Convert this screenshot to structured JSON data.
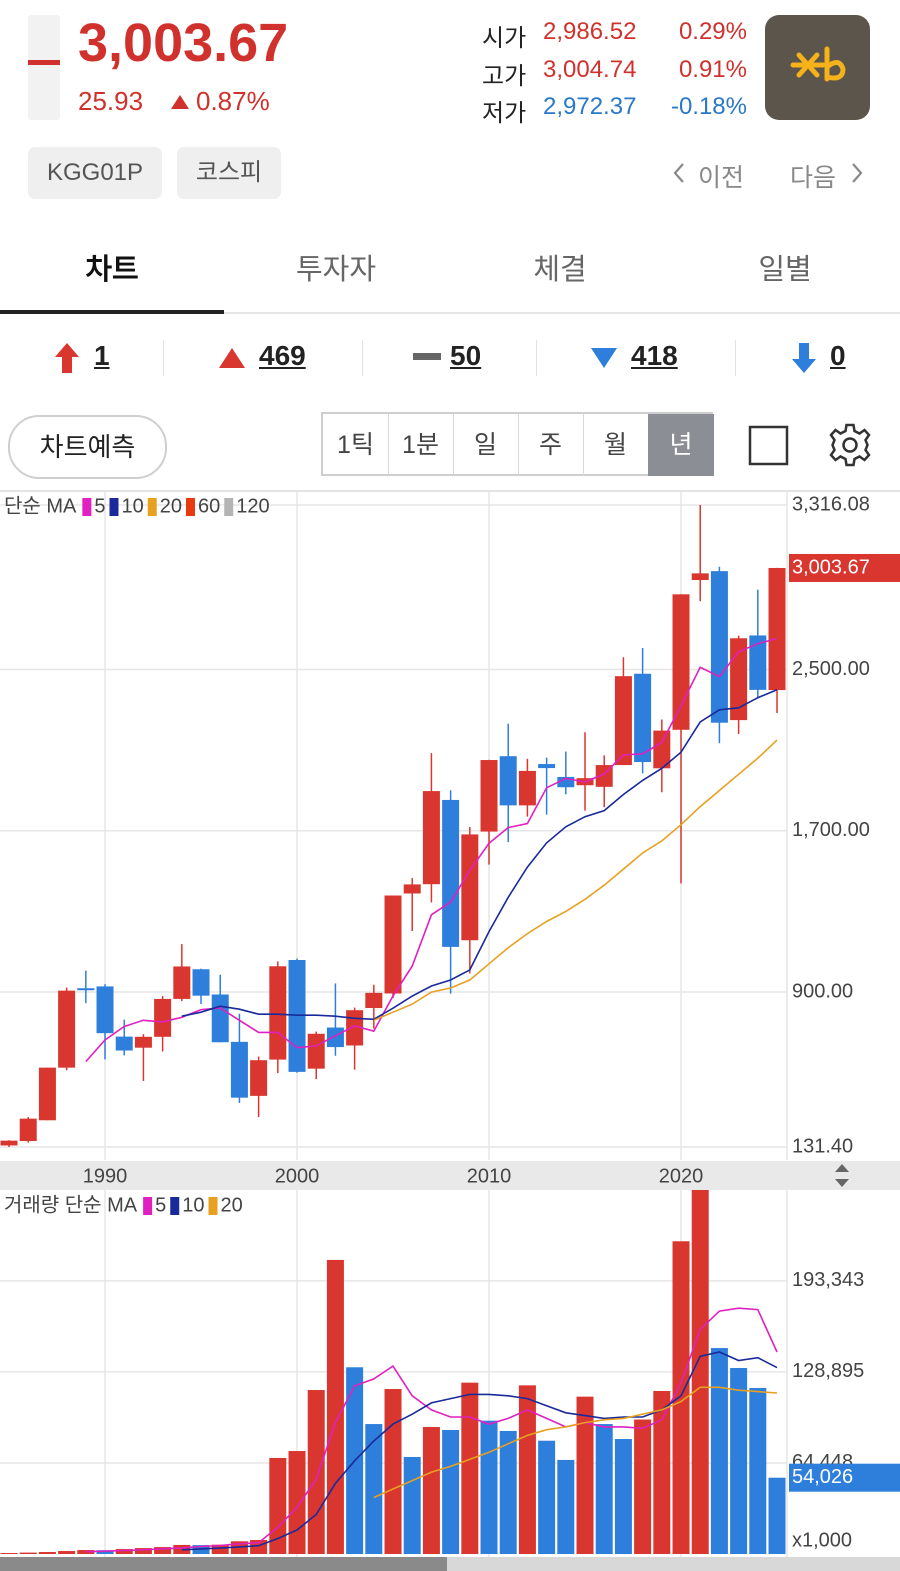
{
  "header": {
    "price": "3,003.67",
    "change": "25.93",
    "change_pct": "0.87%",
    "color": "#d0312d",
    "quotes": [
      {
        "label": "시가",
        "value": "2,986.52",
        "pct": "0.29%",
        "color": "#d0312d"
      },
      {
        "label": "고가",
        "value": "3,004.74",
        "pct": "0.91%",
        "color": "#d0312d"
      },
      {
        "label": "저가",
        "value": "2,972.37",
        "pct": "-0.18%",
        "color": "#2a78c8"
      }
    ],
    "tags": [
      "KGG01P",
      "코스피"
    ],
    "prev": "이전",
    "next": "다음"
  },
  "tabs": [
    "차트",
    "투자자",
    "체결",
    "일별"
  ],
  "counts": [
    1,
    469,
    50,
    418,
    0
  ],
  "toolbar": {
    "predict": "차트예측",
    "periods": [
      "1틱",
      "1분",
      "일",
      "주",
      "월",
      "년"
    ]
  },
  "chart_data": [
    {
      "type": "candlestick",
      "legend_label": "단순 MA",
      "up_color": "#d9362f",
      "down_color": "#2e7fdc",
      "x": [
        1985,
        1986,
        1987,
        1988,
        1989,
        1990,
        1991,
        1992,
        1993,
        1994,
        1995,
        1996,
        1997,
        1998,
        1999,
        2000,
        2001,
        2002,
        2003,
        2004,
        2005,
        2006,
        2007,
        2008,
        2009,
        2010,
        2011,
        2012,
        2013,
        2014,
        2015,
        2016,
        2017,
        2018,
        2019,
        2020,
        2021,
        2022,
        2023,
        2024,
        2025
      ],
      "open": [
        139,
        161,
        264,
        525,
        919,
        928,
        679,
        624,
        678,
        866,
        1013,
        888,
        653,
        385,
        565,
        1059,
        520,
        724,
        635,
        821,
        893,
        1389,
        1435,
        1853,
        1157,
        1696,
        2070,
        1826,
        2031,
        1967,
        1926,
        1918,
        2026,
        2479,
        2010,
        2201,
        2944,
        2988,
        2249,
        2669,
        2398
      ],
      "high": [
        165,
        280,
        525,
        922,
        1007,
        939,
        763,
        691,
        880,
        1138,
        1016,
        986,
        792,
        580,
        1052,
        1066,
        704,
        943,
        823,
        936,
        1379,
        1465,
        2085,
        1901,
        1719,
        2052,
        2231,
        2057,
        2063,
        2093,
        2189,
        2074,
        2561,
        2607,
        2252,
        2873,
        3316.08,
        3010,
        2668,
        2896,
        3004
      ],
      "low": [
        131.4,
        153,
        264,
        512,
        845,
        566,
        586,
        459,
        605,
        855,
        841,
        651,
        350,
        280,
        498,
        500,
        468,
        584,
        515,
        719,
        870,
        1203,
        1345,
        892,
        992,
        1532,
        1644,
        1770,
        1780,
        1881,
        1800,
        1817,
        2026,
        1985,
        1891,
        1439,
        2839,
        2134,
        2180,
        2360,
        2284
      ],
      "close": [
        163,
        272,
        525,
        907,
        909,
        696,
        610,
        678,
        866,
        1027,
        882,
        651,
        376,
        562,
        1028,
        504,
        693,
        627,
        810,
        896,
        1379,
        1434,
        1897,
        1124,
        1682,
        2051,
        1826,
        1997,
        2011,
        1916,
        1961,
        2026,
        2467,
        2041,
        2197,
        2873,
        2977,
        2236,
        2655,
        2399,
        3003.67
      ],
      "ma": [
        {
          "name": "5",
          "color": "#e020c0",
          "values": [
            null,
            null,
            null,
            null,
            555,
            662,
            729,
            760,
            752,
            775,
            813,
            821,
            760,
            700,
            700,
            624,
            633,
            683,
            732,
            706,
            881,
            1029,
            1283,
            1346,
            1503,
            1638,
            1716,
            1736,
            1913,
            1960,
            1942,
            1982,
            2076,
            2082,
            2138,
            2321,
            2511,
            2465,
            2588,
            2628,
            2654
          ]
        },
        {
          "name": "10",
          "color": "#1a2a9a",
          "values": [
            null,
            null,
            null,
            null,
            null,
            null,
            null,
            null,
            null,
            780,
            800,
            830,
            815,
            790,
            790,
            785,
            785,
            780,
            770,
            765,
            820,
            880,
            930,
            960,
            1010,
            1200,
            1370,
            1520,
            1640,
            1720,
            1770,
            1800,
            1880,
            1950,
            2010,
            2090,
            2240,
            2300,
            2310,
            2360,
            2400
          ]
        },
        {
          "name": "20",
          "color": "#e8a020",
          "values": [
            null,
            null,
            null,
            null,
            null,
            null,
            null,
            null,
            null,
            null,
            null,
            null,
            null,
            null,
            null,
            null,
            null,
            null,
            null,
            760,
            800,
            840,
            900,
            920,
            960,
            1040,
            1120,
            1190,
            1250,
            1300,
            1360,
            1430,
            1510,
            1590,
            1650,
            1730,
            1820,
            1900,
            1980,
            2060,
            2150
          ]
        },
        {
          "name": "60",
          "color": "#e83a10"
        },
        {
          "name": "120",
          "color": "#b4b4b4"
        }
      ],
      "xlim": [
        1984.53,
        2025.52
      ],
      "xticks": [
        1990,
        2000,
        2010,
        2020
      ],
      "ylim": [
        131.4,
        3316.08
      ],
      "yticks": [
        {
          "value": 3316.08,
          "label": "3,316.08"
        },
        {
          "value": 2500,
          "label": "2,500.00"
        },
        {
          "value": 1700,
          "label": "1,700.00"
        },
        {
          "value": 900,
          "label": "900.00"
        },
        {
          "value": 131.4,
          "label": "131.40"
        }
      ],
      "last": {
        "value": 3003.67,
        "label": "3,003.67"
      },
      "grid": true
    },
    {
      "type": "bar",
      "legend_label": "거래량 단순 MA",
      "up_color": "#d9362f",
      "down_color": "#2e7fdc",
      "unit_label": "x1,000",
      "x": [
        1985,
        1986,
        1987,
        1988,
        1989,
        1990,
        1991,
        1992,
        1993,
        1994,
        1995,
        1996,
        1997,
        1998,
        1999,
        2000,
        2001,
        2002,
        2003,
        2004,
        2005,
        2006,
        2007,
        2008,
        2009,
        2010,
        2011,
        2012,
        2013,
        2014,
        2015,
        2016,
        2017,
        2018,
        2019,
        2020,
        2021,
        2022,
        2023,
        2024,
        2025
      ],
      "values": [
        700,
        1000,
        1400,
        2100,
        2800,
        2700,
        3500,
        4200,
        4900,
        6400,
        6300,
        6600,
        9000,
        9900,
        68000,
        72900,
        116100,
        208200,
        132200,
        92000,
        116800,
        68700,
        89900,
        87800,
        121300,
        94400,
        87100,
        119400,
        80200,
        66600,
        111400,
        92000,
        81400,
        95200,
        115400,
        221400,
        262000,
        145800,
        131700,
        117500,
        54026
      ],
      "ma": [
        {
          "name": "5",
          "color": "#e020c0",
          "values": [
            null,
            null,
            null,
            null,
            1600,
            2000,
            2500,
            3000,
            3700,
            4300,
            5300,
            6000,
            7200,
            8000,
            19000,
            33000,
            53000,
            93000,
            119000,
            124000,
            133000,
            112000,
            102000,
            97000,
            97000,
            92000,
            96000,
            102000,
            96000,
            90000,
            93000,
            90000,
            90000,
            89000,
            95000,
            121000,
            159000,
            172000,
            174000,
            173000,
            143000
          ]
        },
        {
          "name": "10",
          "color": "#1a2a9a",
          "values": [
            null,
            null,
            null,
            null,
            null,
            null,
            null,
            null,
            null,
            3000,
            3600,
            4200,
            5000,
            5900,
            11000,
            17000,
            28000,
            50000,
            66000,
            80000,
            92000,
            99000,
            107000,
            110000,
            113000,
            113000,
            112000,
            110000,
            105000,
            100000,
            98000,
            96000,
            97000,
            97000,
            102000,
            112000,
            140000,
            143000,
            137000,
            139000,
            132000
          ]
        },
        {
          "name": "20",
          "color": "#e8a020",
          "values": [
            null,
            null,
            null,
            null,
            null,
            null,
            null,
            null,
            null,
            null,
            null,
            null,
            null,
            null,
            null,
            null,
            null,
            null,
            null,
            40000,
            46000,
            52000,
            58000,
            62000,
            67000,
            72000,
            78000,
            84000,
            88000,
            90000,
            93000,
            95000,
            96000,
            99000,
            102000,
            108000,
            118000,
            118000,
            116000,
            115000,
            114000
          ]
        }
      ],
      "xlim": [
        1984.53,
        2025.52
      ],
      "xticks": [
        1990,
        2000,
        2010,
        2020
      ],
      "ylim": [
        0,
        257700
      ],
      "yticks": [
        {
          "value": 193343,
          "label": "193,343"
        },
        {
          "value": 128895,
          "label": "128,895"
        },
        {
          "value": 64448,
          "label": "64,448"
        }
      ],
      "last": {
        "value": 54026,
        "label": "54,026"
      },
      "grid": true
    }
  ]
}
